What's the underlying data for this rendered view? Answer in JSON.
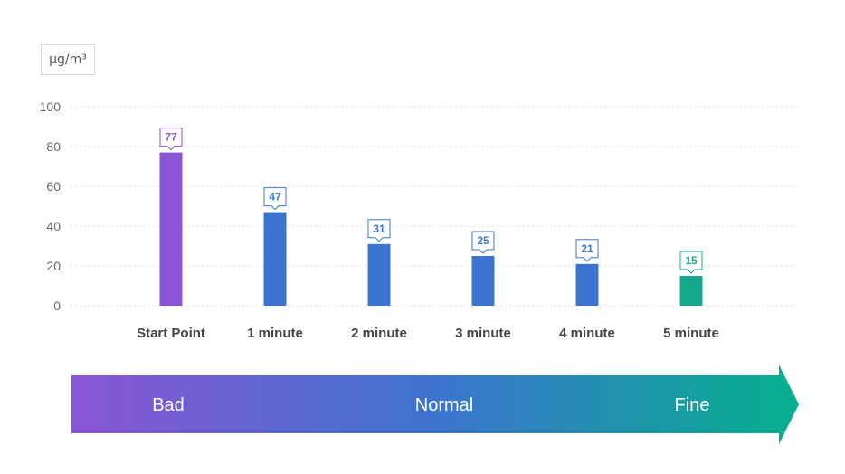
{
  "chart_data": {
    "type": "bar",
    "unit": "μg/m³",
    "title": "",
    "xlabel": "",
    "ylabel": "",
    "categories": [
      "Start Point",
      "1 minute",
      "2 minute",
      "3 minute",
      "4 minute",
      "5 minute"
    ],
    "values": [
      77,
      47,
      31,
      25,
      21,
      15
    ],
    "bar_colors": [
      "#8a55d4",
      "#3d74cf",
      "#3d74cf",
      "#3d74cf",
      "#3d74cf",
      "#13a88c"
    ],
    "ylim": [
      0,
      100
    ],
    "yticks": [
      0,
      20,
      40,
      60,
      80,
      100
    ],
    "grid": true,
    "legend": "none"
  },
  "scale_band": {
    "labels": [
      "Bad",
      "Normal",
      "Fine"
    ],
    "gradient": [
      "#8a55d4",
      "#3d74cf",
      "#05b08d"
    ]
  }
}
